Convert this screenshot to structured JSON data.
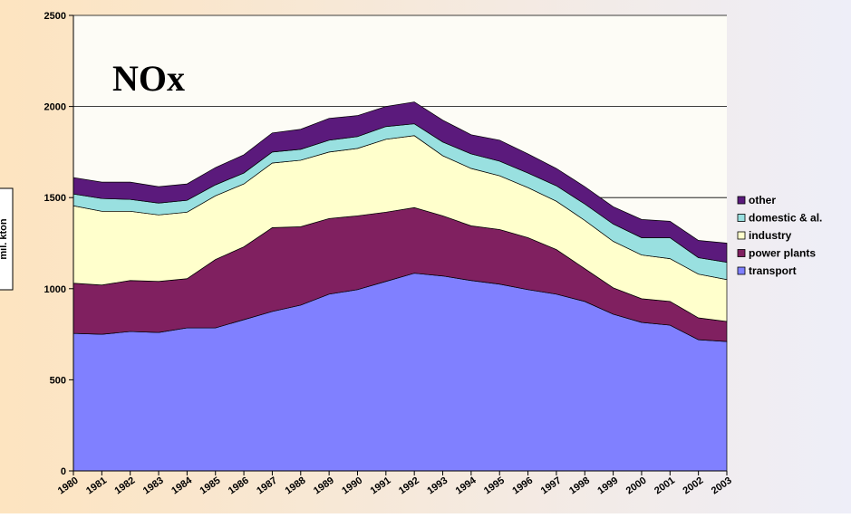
{
  "chart_data": {
    "type": "stacked-area",
    "title": "NOx",
    "y_label": "mil. kton",
    "categories": [
      "1980",
      "1981",
      "1982",
      "1983",
      "1984",
      "1985",
      "1986",
      "1987",
      "1988",
      "1989",
      "1990",
      "1991",
      "1992",
      "1993",
      "1994",
      "1995",
      "1996",
      "1997",
      "1998",
      "1999",
      "2000",
      "2001",
      "2002",
      "2003"
    ],
    "series": [
      {
        "name": "transport",
        "color": "#8080ff",
        "values": [
          755,
          750,
          765,
          760,
          785,
          785,
          830,
          875,
          910,
          970,
          995,
          1040,
          1085,
          1070,
          1045,
          1025,
          995,
          970,
          930,
          860,
          815,
          800,
          720,
          710
        ]
      },
      {
        "name": "power plants",
        "color": "#802060",
        "values": [
          275,
          270,
          280,
          280,
          270,
          375,
          400,
          460,
          430,
          415,
          405,
          380,
          360,
          330,
          300,
          300,
          285,
          245,
          180,
          145,
          130,
          130,
          120,
          110
        ]
      },
      {
        "name": "industry",
        "color": "#ffffcc",
        "values": [
          425,
          405,
          380,
          365,
          365,
          350,
          345,
          355,
          365,
          365,
          370,
          400,
          395,
          330,
          315,
          295,
          275,
          265,
          265,
          255,
          240,
          235,
          240,
          230
        ]
      },
      {
        "name": "domestic & al.",
        "color": "#99e0e0",
        "values": [
          65,
          70,
          65,
          65,
          65,
          60,
          60,
          60,
          60,
          65,
          65,
          70,
          65,
          75,
          80,
          80,
          80,
          85,
          90,
          95,
          95,
          115,
          90,
          95
        ]
      },
      {
        "name": "other",
        "color": "#5b1a7c",
        "values": [
          90,
          90,
          95,
          90,
          90,
          95,
          100,
          105,
          110,
          120,
          115,
          110,
          120,
          120,
          105,
          115,
          105,
          95,
          95,
          95,
          100,
          90,
          95,
          105
        ]
      }
    ],
    "ylim": [
      0,
      2500
    ],
    "yticks": [
      0,
      500,
      1000,
      1500,
      2000,
      2500
    ],
    "grid": true,
    "legend": "right"
  }
}
